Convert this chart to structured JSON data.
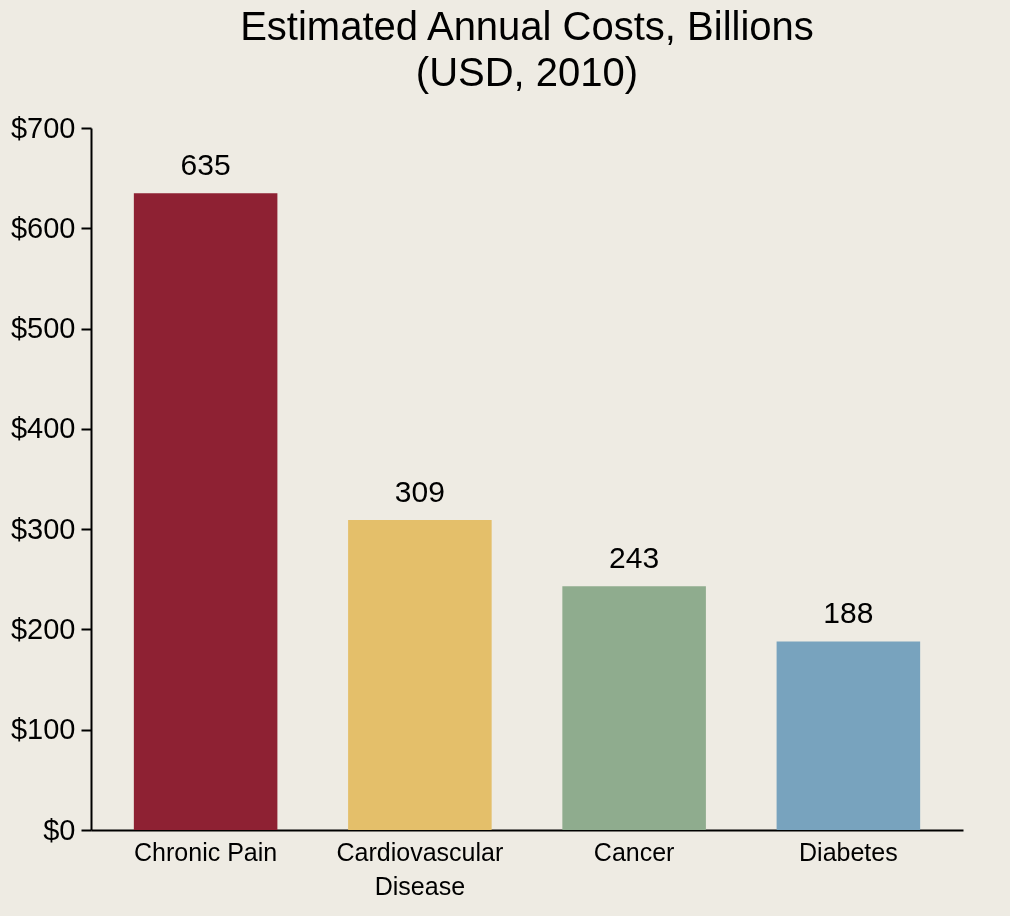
{
  "chart_data": {
    "type": "bar",
    "title": [
      "Estimated Annual Costs, Billions",
      "(USD, 2010)"
    ],
    "categories": [
      "Chronic Pain",
      "Cardiovascular Disease",
      "Cancer",
      "Diabetes"
    ],
    "values": [
      635,
      309,
      243,
      188
    ],
    "colors": [
      "#8e2133",
      "#e4bf6a",
      "#8fac8e",
      "#78a3be"
    ],
    "ylim": [
      0,
      700
    ],
    "yticks": [
      {
        "value": 0,
        "label": "$0"
      },
      {
        "value": 100,
        "label": "$100"
      },
      {
        "value": 200,
        "label": "$200"
      },
      {
        "value": 300,
        "label": "$300"
      },
      {
        "value": 400,
        "label": "$400"
      },
      {
        "value": 500,
        "label": "$500"
      },
      {
        "value": 600,
        "label": "$600"
      },
      {
        "value": 700,
        "label": "$700"
      }
    ],
    "grid": false,
    "data_labels": true
  }
}
